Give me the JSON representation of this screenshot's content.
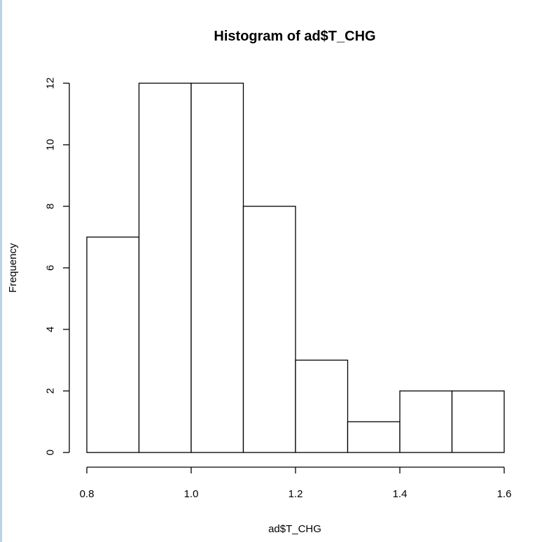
{
  "chart_data": {
    "type": "bar",
    "title": "Histogram of ad$T_CHG",
    "xlabel": "ad$T_CHG",
    "ylabel": "Frequency",
    "bins": [
      {
        "start": 0.8,
        "end": 0.9,
        "count": 7
      },
      {
        "start": 0.9,
        "end": 1.0,
        "count": 12
      },
      {
        "start": 1.0,
        "end": 1.1,
        "count": 12
      },
      {
        "start": 1.1,
        "end": 1.2,
        "count": 8
      },
      {
        "start": 1.2,
        "end": 1.3,
        "count": 3
      },
      {
        "start": 1.3,
        "end": 1.4,
        "count": 1
      },
      {
        "start": 1.4,
        "end": 1.5,
        "count": 2
      },
      {
        "start": 1.5,
        "end": 1.6,
        "count": 2
      }
    ],
    "xlim": [
      0.8,
      1.6
    ],
    "ylim": [
      0,
      12
    ],
    "x_ticks": [
      "0.8",
      "1.0",
      "1.2",
      "1.4",
      "1.6"
    ],
    "x_tick_values": [
      0.8,
      1.0,
      1.2,
      1.4,
      1.6
    ],
    "y_ticks": [
      "0",
      "2",
      "4",
      "6",
      "8",
      "10",
      "12"
    ],
    "y_tick_values": [
      0,
      2,
      4,
      6,
      8,
      10,
      12
    ],
    "bar_fill": "#ffffff",
    "bar_stroke": "#000000",
    "grid": false,
    "legend": "none"
  }
}
